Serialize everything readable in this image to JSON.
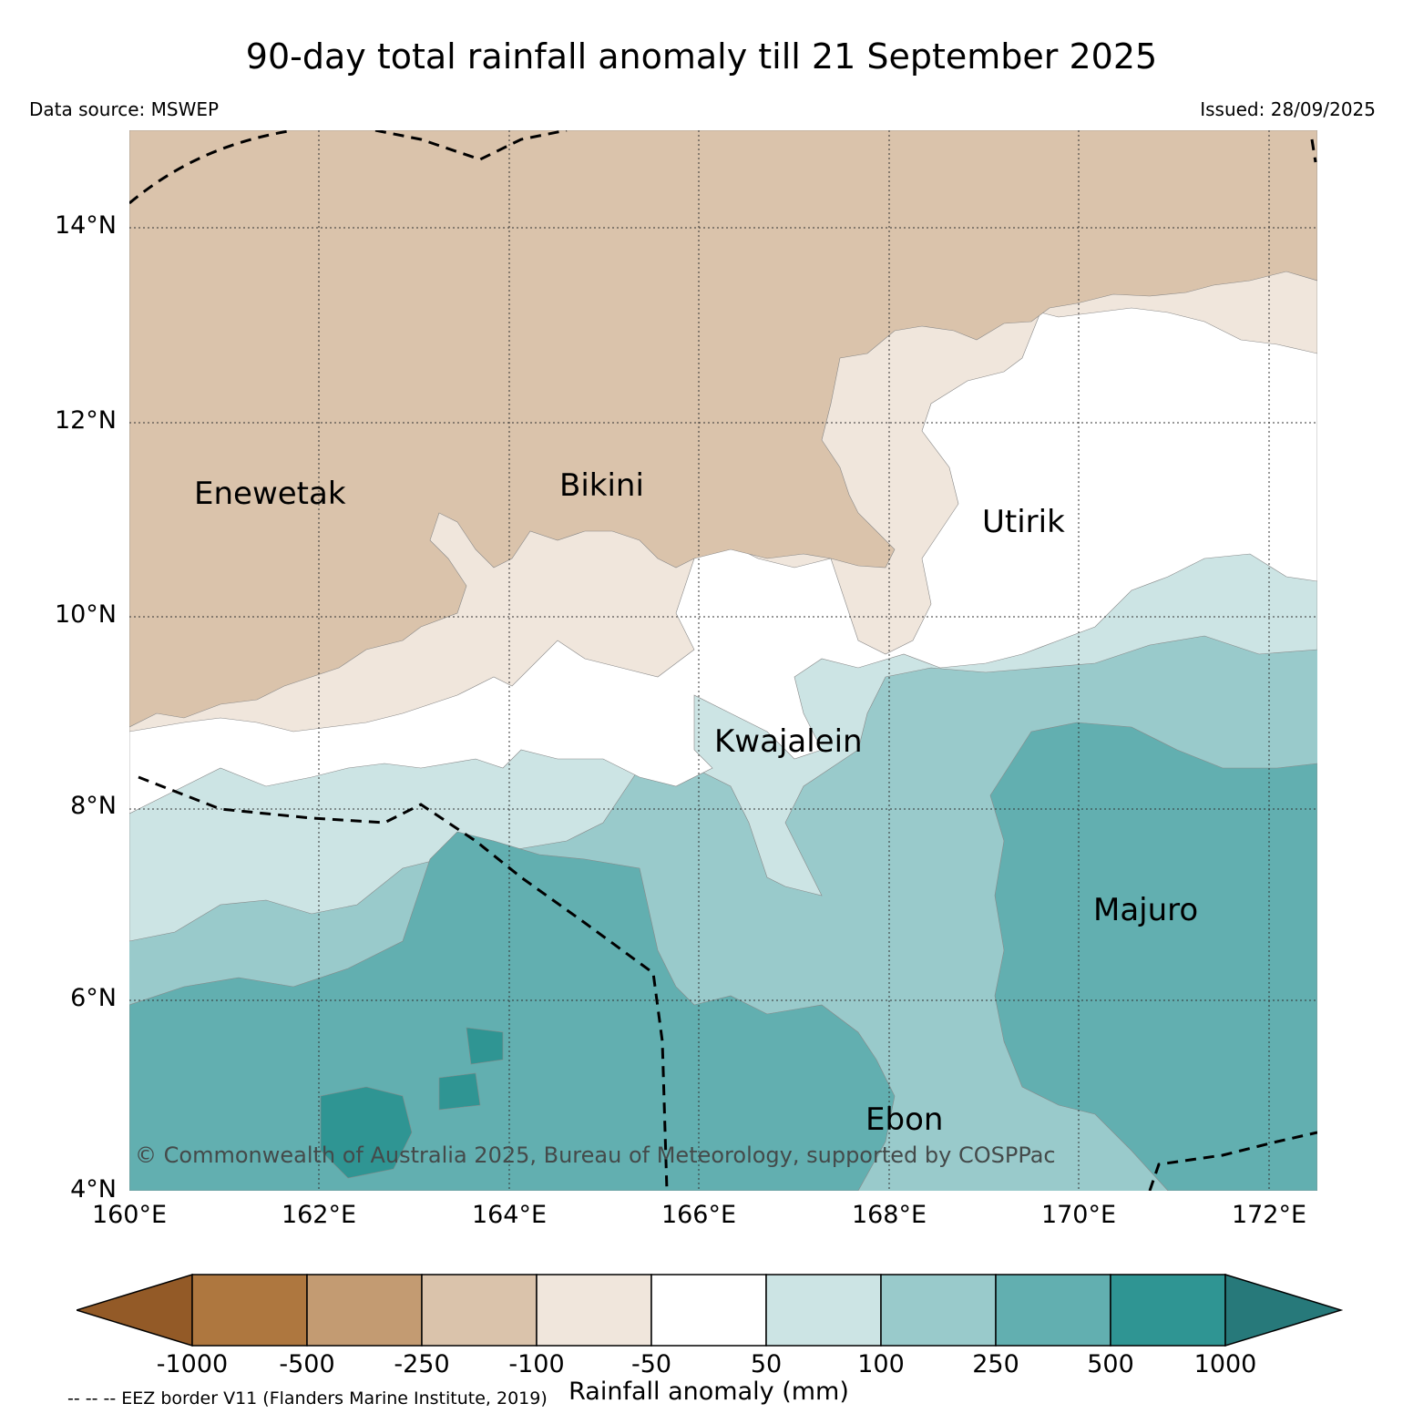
{
  "title": "90-day total rainfall anomaly till 21 September 2025",
  "data_source": "Data source: MSWEP",
  "issued": "Issued: 28/09/2025",
  "lat_ticks": [
    "14°N",
    "12°N",
    "10°N",
    "8°N",
    "6°N",
    "4°N"
  ],
  "lon_ticks": [
    "160°E",
    "162°E",
    "164°E",
    "166°E",
    "168°E",
    "170°E",
    "172°E"
  ],
  "places": {
    "enewetak": "Enewetak",
    "bikini": "Bikini",
    "utirik": "Utirik",
    "kwajalein": "Kwajalein",
    "majuro": "Majuro",
    "ebon": "Ebon"
  },
  "copyright": "© Commonwealth of Australia 2025, Bureau of Meteorology, supported by COSPPac",
  "colorbar": {
    "title": "Rainfall anomaly (mm)",
    "labels": [
      "-1000",
      "-500",
      "-250",
      "-100",
      "-50",
      "50",
      "100",
      "250",
      "500",
      "1000"
    ],
    "colors": [
      "#935a27",
      "#ae773f",
      "#c39b72",
      "#dac3ab",
      "#f0e6dc",
      "#ffffff",
      "#cce4e4",
      "#99cacb",
      "#62afb0",
      "#2f9593",
      "#27797a"
    ]
  },
  "eez_note": "-- -- -- EEZ border V11 (Flanders Marine Institute, 2019)"
}
